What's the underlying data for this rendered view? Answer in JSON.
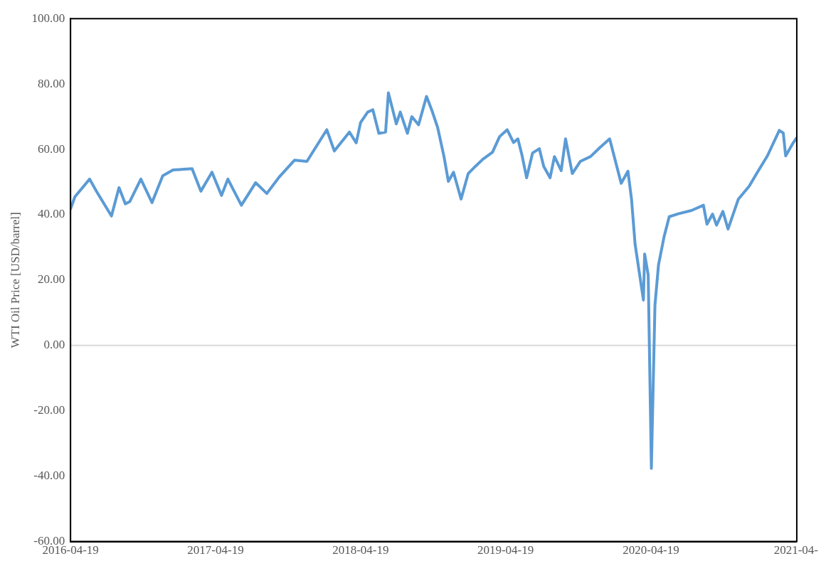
{
  "chart_data": {
    "type": "line",
    "ylabel": "WTI Oil Price [USD/barrel]",
    "x": [
      "2016-04-19",
      "2016-04-30",
      "2016-06-06",
      "2016-06-24",
      "2016-07-31",
      "2016-08-19",
      "2016-09-04",
      "2016-09-15",
      "2016-10-13",
      "2016-11-10",
      "2016-12-07",
      "2017-01-02",
      "2017-02-19",
      "2017-03-13",
      "2017-04-10",
      "2017-05-04",
      "2017-05-20",
      "2017-06-23",
      "2017-07-29",
      "2017-08-26",
      "2017-09-26",
      "2017-11-04",
      "2017-12-05",
      "2017-12-24",
      "2018-01-24",
      "2018-02-12",
      "2018-03-22",
      "2018-04-08",
      "2018-04-19",
      "2018-05-07",
      "2018-05-20",
      "2018-06-04",
      "2018-06-21",
      "2018-06-28",
      "2018-07-05",
      "2018-07-18",
      "2018-07-28",
      "2018-08-15",
      "2018-08-26",
      "2018-09-12",
      "2018-10-02",
      "2018-10-15",
      "2018-10-30",
      "2018-11-15",
      "2018-11-26",
      "2018-12-09",
      "2018-12-28",
      "2019-01-15",
      "2019-02-02",
      "2019-02-21",
      "2019-03-17",
      "2019-04-04",
      "2019-04-23",
      "2019-05-09",
      "2019-05-20",
      "2019-05-30",
      "2019-06-11",
      "2019-06-26",
      "2019-07-13",
      "2019-07-24",
      "2019-08-09",
      "2019-08-20",
      "2019-09-06",
      "2019-09-17",
      "2019-10-04",
      "2019-10-24",
      "2019-11-19",
      "2019-12-13",
      "2020-01-06",
      "2020-02-04",
      "2020-02-21",
      "2020-03-01",
      "2020-03-10",
      "2020-03-31",
      "2020-04-03",
      "2020-04-12",
      "2020-04-20",
      "2020-04-29",
      "2020-05-08",
      "2020-05-22",
      "2020-06-04",
      "2020-06-27",
      "2020-07-30",
      "2020-08-29",
      "2020-09-07",
      "2020-09-21",
      "2020-10-01",
      "2020-10-17",
      "2020-10-30",
      "2020-11-25",
      "2020-12-22",
      "2021-01-10",
      "2021-02-06",
      "2021-03-08",
      "2021-03-18",
      "2021-03-24",
      "2021-04-12",
      "2021-04-20"
    ],
    "series": [
      {
        "color": "#5b9bd5",
        "values": [
          41.8,
          45.5,
          50.9,
          47,
          39.6,
          48.3,
          43.3,
          44,
          50.9,
          43.7,
          51.9,
          53.7,
          54.1,
          47.2,
          53,
          45.9,
          50.9,
          42.9,
          49.8,
          46.5,
          51.5,
          56.7,
          56.3,
          60,
          66,
          59.5,
          65.3,
          62,
          68.2,
          71.4,
          72.1,
          64.9,
          65.3,
          77.3,
          74,
          67.8,
          71.4,
          64.9,
          70,
          67.5,
          76.2,
          72.1,
          66.7,
          57.8,
          50.2,
          53,
          44.8,
          52.6,
          54.8,
          57,
          59.1,
          63.9,
          66,
          62.1,
          63.2,
          58.4,
          51.3,
          58.9,
          60.2,
          54.8,
          51.3,
          57.8,
          53.5,
          63.2,
          52.6,
          56.3,
          57.8,
          60.6,
          63.2,
          49.6,
          53.3,
          44.8,
          31,
          13.9,
          28,
          21.6,
          -37.6,
          12.3,
          24.7,
          33.3,
          39.4,
          40.3,
          41.3,
          42.9,
          37.1,
          40.2,
          36.8,
          41,
          35.6,
          44.8,
          48.7,
          52.6,
          58,
          65.8,
          65,
          58,
          62,
          63.4
        ]
      }
    ],
    "xlim": [
      "2016-04-19",
      "2021-04-21"
    ],
    "xticks": [
      "2016-04-19",
      "2017-04-19",
      "2018-04-19",
      "2019-04-19",
      "2020-04-19",
      {
        "value": "2021-04-19",
        "label": "2021-04-"
      }
    ],
    "ylim": [
      -60,
      100
    ],
    "yticks": [
      {
        "value": -60,
        "label": "-60.00"
      },
      {
        "value": -40,
        "label": "-40.00"
      },
      {
        "value": -20,
        "label": "-20.00"
      },
      {
        "value": 0,
        "label": "0.00"
      },
      {
        "value": 20,
        "label": "20.00"
      },
      {
        "value": 40,
        "label": "40.00"
      },
      {
        "value": 60,
        "label": "60.00"
      },
      {
        "value": 80,
        "label": "80.00"
      },
      {
        "value": 100,
        "label": "100.00"
      }
    ],
    "ref_lines": [
      {
        "axis": "y",
        "value": 0,
        "color": "#d9d9d9"
      }
    ],
    "grid": false,
    "legend": false,
    "marker": "none",
    "line_style": "solid"
  }
}
